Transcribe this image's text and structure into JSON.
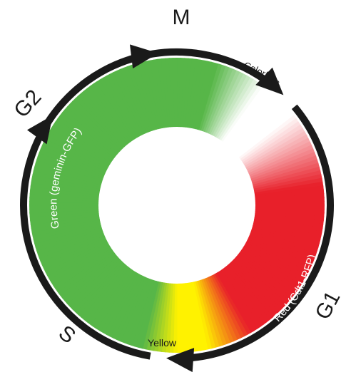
{
  "phases": {
    "m": "M",
    "g1": "G1",
    "s": "S",
    "g2": "G2"
  },
  "ring_labels": {
    "green": "Green (geminin-GFP)",
    "colorless": "Colorless",
    "red": "Red (Cdt1-RFP)",
    "yellow": "Yellow"
  },
  "colors": {
    "green": "#57b648",
    "red": "#e8202a",
    "yellow": "#fff200",
    "white": "#ffffff",
    "outline": "#1a1a1a"
  }
}
